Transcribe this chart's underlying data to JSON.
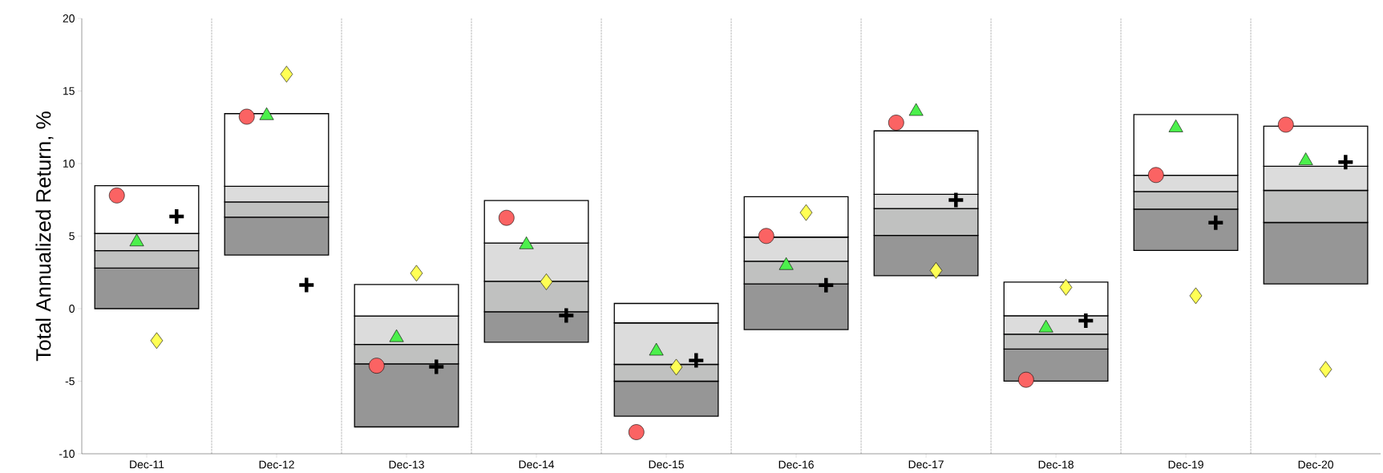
{
  "chart_data": {
    "type": "bar",
    "ylabel": "Total Annualized Return, %",
    "categories": [
      "Dec-11",
      "Dec-12",
      "Dec-13",
      "Dec-14",
      "Dec-15",
      "Dec-16",
      "Dec-17",
      "Dec-18",
      "Dec-19",
      "Dec-20"
    ],
    "series": [
      {
        "color": "#969696",
        "base": [
          0,
          3.7,
          -8.15,
          -2.31,
          -7.41,
          -1.44,
          2.27,
          -4.99,
          4.01,
          1.7
        ],
        "values": [
          2.8,
          2.6,
          4.35,
          2.1,
          2.41,
          3.14,
          2.78,
          2.21,
          2.85,
          4.24
        ]
      },
      {
        "color": "#c0c1c0",
        "base": [
          2.8,
          6.3,
          -3.8,
          -0.21,
          -5.0,
          1.7,
          5.05,
          -2.78,
          6.86,
          5.94
        ],
        "values": [
          1.2,
          1.05,
          1.34,
          2.1,
          1.16,
          1.57,
          1.85,
          1.02,
          1.21,
          2.21
        ]
      },
      {
        "color": "#dcdcdc",
        "base": [
          4.0,
          7.35,
          -2.46,
          1.89,
          -3.84,
          3.27,
          6.9,
          -1.76,
          8.07,
          8.15
        ],
        "values": [
          1.18,
          1.08,
          1.96,
          2.63,
          2.86,
          1.66,
          0.98,
          1.27,
          1.12,
          1.66
        ]
      },
      {
        "color": "#ffffff",
        "base": [
          5.18,
          8.43,
          -0.5,
          4.52,
          -0.98,
          4.93,
          7.88,
          -0.49,
          9.19,
          9.81
        ],
        "values": [
          3.29,
          5.01,
          2.16,
          2.93,
          1.34,
          2.78,
          4.37,
          2.32,
          4.19,
          2.76
        ]
      },
      {
        "type": "scatter",
        "marker": "circle",
        "color": "#fb6363",
        "x": [
          "Dec-11",
          "Dec-12",
          "Dec-13",
          "Dec-14",
          "Dec-15",
          "Dec-16",
          "Dec-17",
          "Dec-18",
          "Dec-19",
          "Dec-20"
        ],
        "values": [
          7.8,
          13.23,
          -3.93,
          6.26,
          -8.51,
          5.01,
          12.82,
          -4.9,
          9.21,
          12.68
        ]
      },
      {
        "type": "scatter",
        "marker": "triangle",
        "color": "#4cf04c",
        "x": [
          "Dec-11",
          "Dec-12",
          "Dec-13",
          "Dec-14",
          "Dec-15",
          "Dec-16",
          "Dec-17",
          "Dec-18",
          "Dec-19",
          "Dec-20"
        ],
        "values": [
          4.6,
          13.3,
          -2.0,
          4.4,
          -2.93,
          2.97,
          13.59,
          -1.34,
          12.46,
          10.19
        ]
      },
      {
        "type": "scatter",
        "marker": "diamond",
        "color": "#ffff55",
        "x": [
          "Dec-11",
          "Dec-12",
          "Dec-13",
          "Dec-14",
          "Dec-15",
          "Dec-16",
          "Dec-17",
          "Dec-18",
          "Dec-19",
          "Dec-20"
        ],
        "values": [
          -2.2,
          16.16,
          2.44,
          1.85,
          -4.03,
          6.62,
          2.63,
          1.47,
          0.89,
          -4.18
        ]
      },
      {
        "type": "scatter",
        "marker": "cross",
        "color": "#000000",
        "x": [
          "Dec-11",
          "Dec-12",
          "Dec-13",
          "Dec-14",
          "Dec-15",
          "Dec-16",
          "Dec-17",
          "Dec-18",
          "Dec-19",
          "Dec-20"
        ],
        "values": [
          6.35,
          1.63,
          -4.0,
          -0.47,
          -3.57,
          1.61,
          7.49,
          -0.83,
          5.92,
          10.1
        ]
      }
    ],
    "ylim": [
      -10,
      20
    ],
    "yticks": [
      -10,
      -5,
      0,
      5,
      10,
      15,
      20
    ],
    "grid": "x"
  }
}
